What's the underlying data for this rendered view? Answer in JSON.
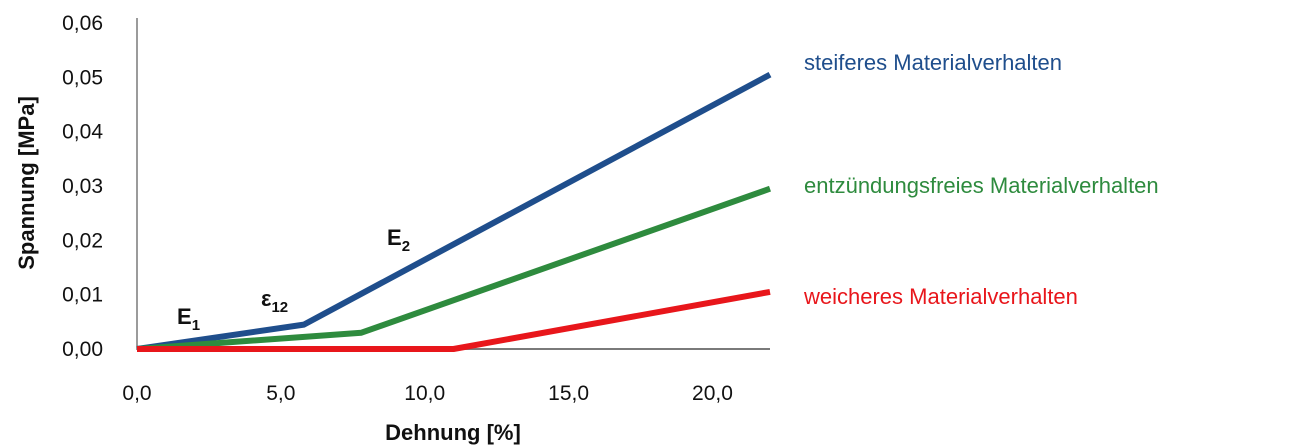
{
  "chart_data": {
    "type": "line",
    "xlabel": "Dehnung [%]",
    "ylabel": "Spannung [MPa]",
    "xlim": [
      0,
      22
    ],
    "ylim": [
      0,
      0.06
    ],
    "x_ticks": [
      "0,0",
      "5,0",
      "10,0",
      "15,0",
      "20,0"
    ],
    "y_ticks": [
      "0,00",
      "0,01",
      "0,02",
      "0,03",
      "0,04",
      "0,05",
      "0,06"
    ],
    "grid": false,
    "series": [
      {
        "name": "steiferes Materialverhalten",
        "color": "#1f4e8c",
        "x": [
          0,
          5.8,
          22
        ],
        "y": [
          0,
          0.0045,
          0.0505
        ]
      },
      {
        "name": "entzündungsfreies Materialverhalten",
        "color": "#2e8b3e",
        "x": [
          0,
          7.8,
          22
        ],
        "y": [
          0,
          0.003,
          0.0295
        ]
      },
      {
        "name": "weicheres Materialverhalten",
        "color": "#e8161b",
        "x": [
          0,
          11.0,
          22
        ],
        "y": [
          0,
          0,
          0.0105
        ]
      }
    ],
    "annotations": {
      "e1": {
        "main": "E",
        "sub": "1"
      },
      "eps12": {
        "main": "ε",
        "sub": "12"
      },
      "e2": {
        "main": "E",
        "sub": "2"
      }
    }
  }
}
